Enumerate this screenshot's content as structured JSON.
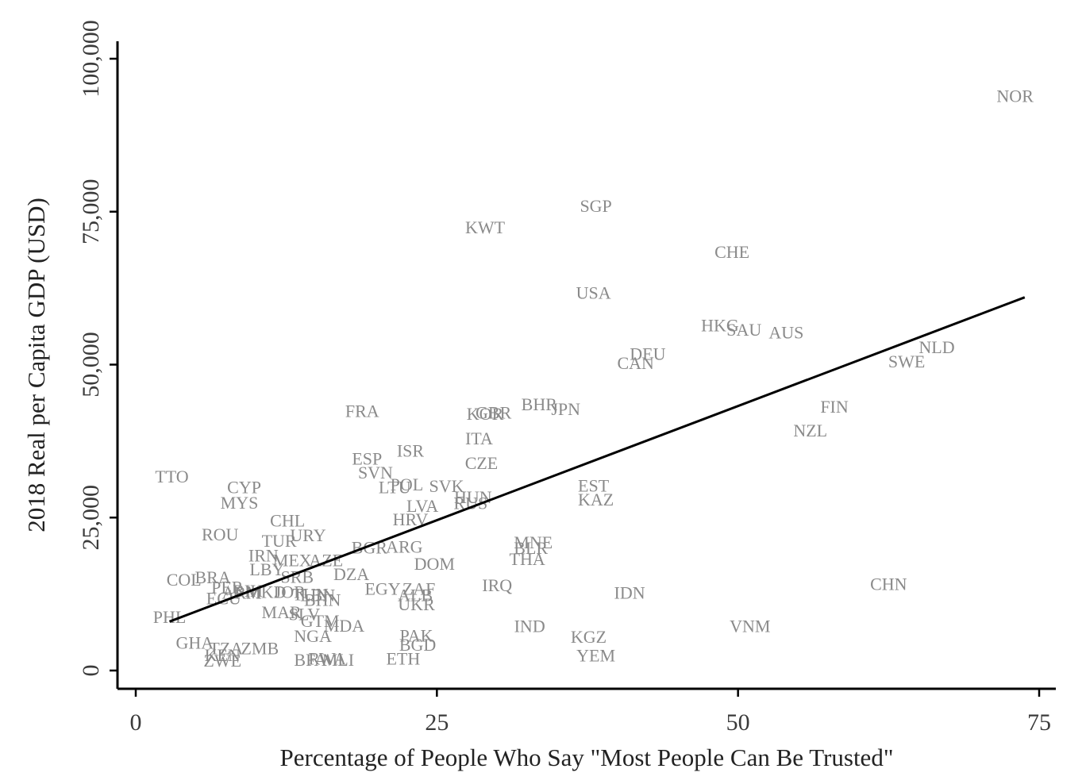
{
  "chart_data": {
    "type": "scatter",
    "title": "",
    "xlabel": "Percentage of People Who Say \"Most People Can Be Trusted\"",
    "ylabel": "2018 Real per Capita GDP (USD)",
    "xlim": [
      -1,
      76
    ],
    "ylim": [
      -3000,
      103000
    ],
    "xticks": [
      {
        "value": 0,
        "label": "0"
      },
      {
        "value": 25,
        "label": "25"
      },
      {
        "value": 50,
        "label": "50"
      },
      {
        "value": 75,
        "label": "75"
      }
    ],
    "yticks": [
      {
        "value": 0,
        "label": "0"
      },
      {
        "value": 25000,
        "label": "25,000"
      },
      {
        "value": 50000,
        "label": "50,000"
      },
      {
        "value": 75000,
        "label": "75,000"
      },
      {
        "value": 100000,
        "label": "100,000"
      }
    ],
    "grid": false,
    "legend": "none",
    "marker": "country code labels",
    "label_color": "#8a8a8a",
    "fit_line": {
      "type": "linear",
      "x": [
        2.8,
        73.8
      ],
      "y": [
        8000,
        61000
      ],
      "color": "#000000"
    },
    "points": [
      {
        "label": "NOR",
        "x": 73.0,
        "y": 94000
      },
      {
        "label": "SGP",
        "x": 38.2,
        "y": 76000
      },
      {
        "label": "KWT",
        "x": 29.0,
        "y": 72500
      },
      {
        "label": "CHE",
        "x": 49.5,
        "y": 68500
      },
      {
        "label": "USA",
        "x": 38.0,
        "y": 61800
      },
      {
        "label": "HKG",
        "x": 48.5,
        "y": 56500
      },
      {
        "label": "SAU",
        "x": 50.5,
        "y": 55800
      },
      {
        "label": "AUS",
        "x": 54.0,
        "y": 55300
      },
      {
        "label": "NLD",
        "x": 66.5,
        "y": 52900
      },
      {
        "label": "SWE",
        "x": 64.0,
        "y": 50600
      },
      {
        "label": "DEU",
        "x": 42.5,
        "y": 51800
      },
      {
        "label": "CAN",
        "x": 41.5,
        "y": 50300
      },
      {
        "label": "FIN",
        "x": 58.0,
        "y": 43200
      },
      {
        "label": "NZL",
        "x": 56.0,
        "y": 39300
      },
      {
        "label": "FRA",
        "x": 18.8,
        "y": 42500
      },
      {
        "label": "GBR",
        "x": 29.7,
        "y": 42200
      },
      {
        "label": "KOR",
        "x": 29.0,
        "y": 42000
      },
      {
        "label": "BHR",
        "x": 33.5,
        "y": 43600
      },
      {
        "label": "JPN",
        "x": 35.7,
        "y": 42800
      },
      {
        "label": "ITA",
        "x": 28.5,
        "y": 38000
      },
      {
        "label": "ISR",
        "x": 22.8,
        "y": 36000
      },
      {
        "label": "CZE",
        "x": 28.7,
        "y": 34000
      },
      {
        "label": "ESP",
        "x": 19.2,
        "y": 34700
      },
      {
        "label": "SVN",
        "x": 19.9,
        "y": 32400
      },
      {
        "label": "LTU",
        "x": 21.5,
        "y": 30000
      },
      {
        "label": "POL",
        "x": 22.5,
        "y": 30500
      },
      {
        "label": "SVK",
        "x": 25.8,
        "y": 30200
      },
      {
        "label": "HUN",
        "x": 28.0,
        "y": 28400
      },
      {
        "label": "RUS",
        "x": 27.8,
        "y": 27400
      },
      {
        "label": "LVA",
        "x": 23.8,
        "y": 27000
      },
      {
        "label": "EST",
        "x": 38.0,
        "y": 30300
      },
      {
        "label": "KAZ",
        "x": 38.2,
        "y": 28000
      },
      {
        "label": "TTO",
        "x": 3.0,
        "y": 31800
      },
      {
        "label": "CYP",
        "x": 9.0,
        "y": 30000
      },
      {
        "label": "MYS",
        "x": 8.6,
        "y": 27500
      },
      {
        "label": "HRV",
        "x": 22.8,
        "y": 24800
      },
      {
        "label": "CHL",
        "x": 12.6,
        "y": 24600
      },
      {
        "label": "ROU",
        "x": 7.0,
        "y": 22300
      },
      {
        "label": "URY",
        "x": 14.3,
        "y": 22200
      },
      {
        "label": "TUR",
        "x": 11.9,
        "y": 21300
      },
      {
        "label": "BGR",
        "x": 19.4,
        "y": 20200
      },
      {
        "label": "ARG",
        "x": 22.3,
        "y": 20300
      },
      {
        "label": "MNE",
        "x": 33.0,
        "y": 21000
      },
      {
        "label": "BLR",
        "x": 32.8,
        "y": 20100
      },
      {
        "label": "THA",
        "x": 32.5,
        "y": 18300
      },
      {
        "label": "IRN",
        "x": 10.6,
        "y": 18900
      },
      {
        "label": "MEX",
        "x": 13.0,
        "y": 18100
      },
      {
        "label": "AZE",
        "x": 15.8,
        "y": 18100
      },
      {
        "label": "LBY",
        "x": 10.9,
        "y": 16600
      },
      {
        "label": "DOM",
        "x": 24.8,
        "y": 17500
      },
      {
        "label": "SRB",
        "x": 13.4,
        "y": 15400
      },
      {
        "label": "DZA",
        "x": 17.9,
        "y": 15800
      },
      {
        "label": "COL",
        "x": 4.0,
        "y": 14900
      },
      {
        "label": "BRA",
        "x": 6.4,
        "y": 15300
      },
      {
        "label": "CHN",
        "x": 62.5,
        "y": 14200
      },
      {
        "label": "IRQ",
        "x": 30.0,
        "y": 14000
      },
      {
        "label": "IDN",
        "x": 41.0,
        "y": 12800
      },
      {
        "label": "PER",
        "x": 7.6,
        "y": 13700
      },
      {
        "label": "ECU",
        "x": 7.3,
        "y": 11900
      },
      {
        "label": "ARM",
        "x": 8.8,
        "y": 12800
      },
      {
        "label": "BIH",
        "x": 9.3,
        "y": 13100
      },
      {
        "label": "MKD",
        "x": 10.8,
        "y": 12900
      },
      {
        "label": "JOR",
        "x": 12.8,
        "y": 12900
      },
      {
        "label": "TUN",
        "x": 14.5,
        "y": 12500
      },
      {
        "label": "LBN",
        "x": 15.1,
        "y": 12400
      },
      {
        "label": "BHN",
        "x": 15.5,
        "y": 11600
      },
      {
        "label": "EGY",
        "x": 20.5,
        "y": 13400
      },
      {
        "label": "ZAF",
        "x": 23.5,
        "y": 13400
      },
      {
        "label": "ALB",
        "x": 23.2,
        "y": 12400
      },
      {
        "label": "UKR",
        "x": 23.3,
        "y": 10900
      },
      {
        "label": "PHL",
        "x": 2.8,
        "y": 8800
      },
      {
        "label": "MAR",
        "x": 12.1,
        "y": 9600
      },
      {
        "label": "SLV",
        "x": 14.0,
        "y": 9300
      },
      {
        "label": "GTM",
        "x": 15.3,
        "y": 8200
      },
      {
        "label": "MDA",
        "x": 17.3,
        "y": 7400
      },
      {
        "label": "IND",
        "x": 32.7,
        "y": 7300
      },
      {
        "label": "VNM",
        "x": 51.0,
        "y": 7300
      },
      {
        "label": "NGA",
        "x": 14.7,
        "y": 5700
      },
      {
        "label": "PAK",
        "x": 23.3,
        "y": 5800
      },
      {
        "label": "BGD",
        "x": 23.4,
        "y": 4300
      },
      {
        "label": "KGZ",
        "x": 37.6,
        "y": 5600
      },
      {
        "label": "YEM",
        "x": 38.2,
        "y": 2500
      },
      {
        "label": "GHA",
        "x": 4.9,
        "y": 4600
      },
      {
        "label": "TZA",
        "x": 7.5,
        "y": 3700
      },
      {
        "label": "ZMB",
        "x": 10.3,
        "y": 3700
      },
      {
        "label": "KEN",
        "x": 7.2,
        "y": 2600
      },
      {
        "label": "ZWE",
        "x": 7.2,
        "y": 1700
      },
      {
        "label": "BFA",
        "x": 14.5,
        "y": 1800
      },
      {
        "label": "RWA",
        "x": 15.9,
        "y": 2000
      },
      {
        "label": "MLI",
        "x": 16.8,
        "y": 1800
      },
      {
        "label": "ETH",
        "x": 22.2,
        "y": 2000
      }
    ]
  }
}
